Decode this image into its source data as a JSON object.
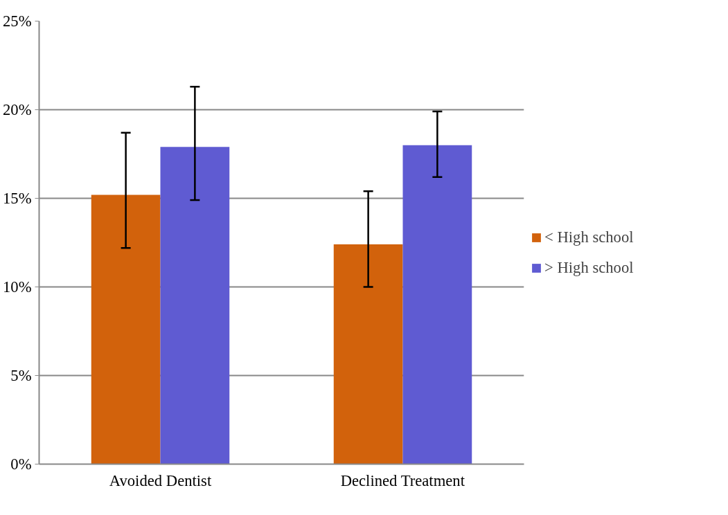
{
  "chart_data": {
    "type": "bar",
    "categories": [
      "Avoided Dentist",
      "Declined Treatment"
    ],
    "series": [
      {
        "name": "< High school",
        "color": "#d2620c",
        "values": [
          15.2,
          12.4
        ],
        "errors": [
          [
            12.2,
            18.7
          ],
          [
            10.0,
            15.4
          ]
        ]
      },
      {
        "name": "> High school",
        "color": "#5f5bd2",
        "values": [
          17.9,
          18.0
        ],
        "errors": [
          [
            14.9,
            21.3
          ],
          [
            16.2,
            19.9
          ]
        ]
      }
    ],
    "ylim": [
      0,
      25
    ],
    "yticks": [
      {
        "value": 0,
        "label": "0%"
      },
      {
        "value": 5,
        "label": "5%"
      },
      {
        "value": 10,
        "label": "10%"
      },
      {
        "value": 15,
        "label": "15%"
      },
      {
        "value": 20,
        "label": "20%"
      },
      {
        "value": 25,
        "label": "25%"
      }
    ],
    "grid": "y",
    "legend": "right"
  }
}
